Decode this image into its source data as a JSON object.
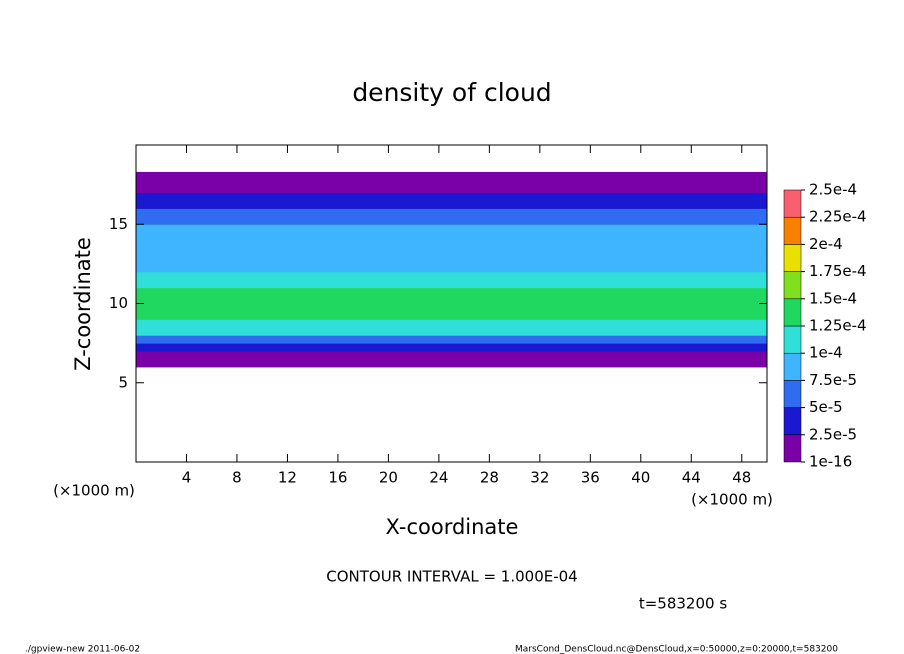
{
  "chart_data": {
    "type": "profile-heatmap",
    "title": "density of cloud",
    "x_label": "X-coordinate",
    "y_label": "Z-coordinate",
    "x_unit_left": "(×1000 m)",
    "x_unit_right": "(×1000 m)",
    "xlim": [
      0,
      50
    ],
    "xticks": [
      4,
      8,
      12,
      16,
      20,
      24,
      28,
      32,
      36,
      40,
      44,
      48
    ],
    "ylim": [
      0,
      20
    ],
    "yticks": [
      5,
      10,
      15
    ],
    "zbins": [
      6,
      6.5,
      7,
      7.5,
      8,
      9,
      10,
      11,
      12,
      13,
      14,
      15,
      16,
      16.5,
      17,
      17.5,
      18.3
    ],
    "values": [
      5e-06,
      1.5e-05,
      2.8e-05,
      6e-05,
      0.000105,
      0.00013,
      0.000135,
      0.00011,
      9e-05,
      8e-05,
      7.5e-05,
      6e-05,
      4e-05,
      2.5e-05,
      1.2e-05,
      5e-06
    ],
    "colorbar": {
      "ticks": [
        {
          "value": 1e-16,
          "label": "1e-16"
        },
        {
          "value": 2.5e-05,
          "label": "2.5e-5"
        },
        {
          "value": 5e-05,
          "label": "5e-5"
        },
        {
          "value": 7.5e-05,
          "label": "7.5e-5"
        },
        {
          "value": 0.0001,
          "label": "1e-4"
        },
        {
          "value": 0.000125,
          "label": "1.25e-4"
        },
        {
          "value": 0.00015,
          "label": "1.5e-4"
        },
        {
          "value": 0.000175,
          "label": "1.75e-4"
        },
        {
          "value": 0.0002,
          "label": "2e-4"
        },
        {
          "value": 0.000225,
          "label": "2.25e-4"
        },
        {
          "value": 0.00025,
          "label": "2.5e-4"
        }
      ],
      "colors": [
        "#7a00a8",
        "#1a18d0",
        "#2f6cf0",
        "#3fb4ff",
        "#30e0d8",
        "#20d860",
        "#80e020",
        "#e8e000",
        "#f88000",
        "#f86070"
      ]
    },
    "contour_note": "CONTOUR INTERVAL = 1.000E-04",
    "time_note": "t=583200 s",
    "footer_left": "./gpview-new  2011-06-02",
    "footer_right": "MarsCond_DensCloud.nc@DensCloud,x=0:50000,z=0:20000,t=583200"
  }
}
